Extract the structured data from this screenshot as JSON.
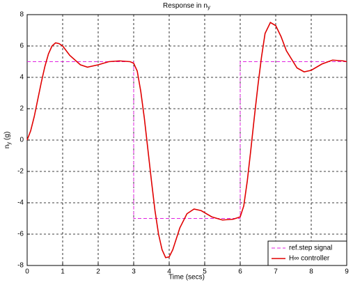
{
  "chart_data": {
    "type": "line",
    "title": "Response in n",
    "title_subscript": "y",
    "xlabel": "Time (secs)",
    "ylabel": "n",
    "ylabel_subscript": "y",
    "ylabel_suffix": " (g)",
    "xlim": [
      0,
      9
    ],
    "xticks": [
      0,
      1,
      2,
      3,
      4,
      5,
      6,
      7,
      8,
      9
    ],
    "ylim": [
      -8,
      8
    ],
    "yticks": [
      -8,
      -6,
      -4,
      -2,
      0,
      2,
      4,
      6,
      8
    ],
    "grid": true,
    "legend": "lower right",
    "series": [
      {
        "name": "ref.step signal",
        "color": "#e020e0",
        "dash": true,
        "x": [
          0,
          3,
          3,
          6,
          6,
          9
        ],
        "values": [
          5,
          5,
          -5,
          -5,
          5,
          5
        ]
      },
      {
        "name": "H∞ controller",
        "color": "#e00000",
        "dash": false,
        "x": [
          0,
          0.1,
          0.2,
          0.3,
          0.4,
          0.5,
          0.6,
          0.7,
          0.8,
          0.9,
          1.0,
          1.2,
          1.5,
          1.7,
          2.0,
          2.3,
          2.6,
          2.9,
          3.0,
          3.1,
          3.2,
          3.3,
          3.4,
          3.5,
          3.6,
          3.7,
          3.8,
          3.9,
          4.0,
          4.1,
          4.3,
          4.5,
          4.7,
          4.9,
          5.2,
          5.5,
          5.8,
          6.0,
          6.1,
          6.2,
          6.3,
          6.4,
          6.5,
          6.6,
          6.7,
          6.85,
          7.0,
          7.15,
          7.3,
          7.6,
          7.8,
          8.0,
          8.3,
          8.6,
          8.9,
          9.0
        ],
        "values": [
          0,
          0.6,
          1.5,
          2.6,
          3.7,
          4.7,
          5.5,
          6.0,
          6.2,
          6.15,
          6.0,
          5.4,
          4.8,
          4.65,
          4.8,
          5.0,
          5.05,
          5.0,
          4.9,
          4.4,
          3.1,
          1.4,
          -0.6,
          -2.6,
          -4.5,
          -6.0,
          -7.0,
          -7.5,
          -7.45,
          -7.0,
          -5.6,
          -4.7,
          -4.4,
          -4.5,
          -4.9,
          -5.1,
          -5.05,
          -4.9,
          -4.2,
          -2.6,
          -0.6,
          1.5,
          3.5,
          5.3,
          6.8,
          7.5,
          7.3,
          6.6,
          5.7,
          4.6,
          4.35,
          4.45,
          4.85,
          5.1,
          5.05,
          5.0
        ]
      }
    ]
  }
}
